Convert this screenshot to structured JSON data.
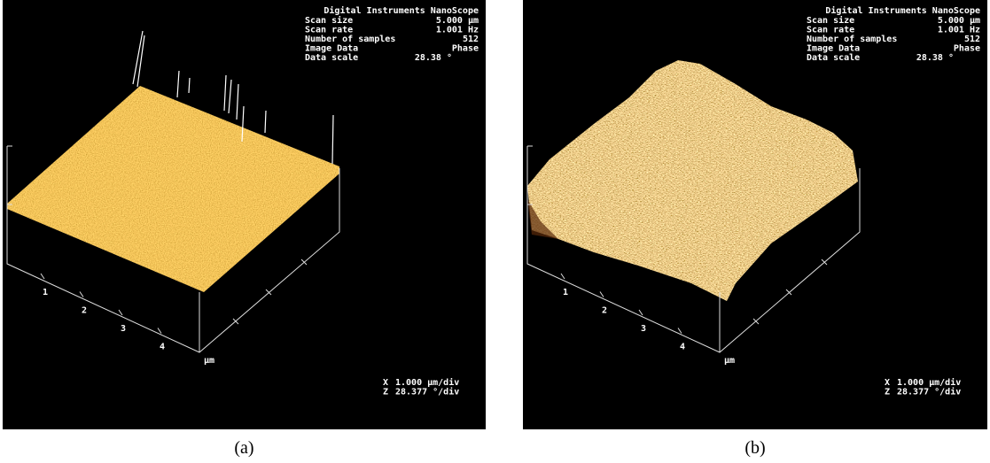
{
  "panels": [
    {
      "header": {
        "title": "Digital Instruments NanoScope",
        "rows": [
          {
            "label": "Scan size",
            "value": "5.000 µm"
          },
          {
            "label": "Scan rate",
            "value": "1.001 Hz"
          },
          {
            "label": "Number of samples",
            "value": "512"
          },
          {
            "label": "Image Data",
            "value": "Phase"
          },
          {
            "label": "Data scale",
            "value": "28.38 °"
          }
        ]
      },
      "axis_ticks": [
        "1",
        "2",
        "3",
        "4"
      ],
      "axis_unit": "µm",
      "footer": [
        {
          "axis": "X",
          "value": "1.000 µm/div"
        },
        {
          "axis": "Z",
          "value": "28.377 °/div"
        }
      ],
      "caption": "(a)"
    },
    {
      "header": {
        "title": "Digital Instruments NanoScope",
        "rows": [
          {
            "label": "Scan size",
            "value": "5.000 µm"
          },
          {
            "label": "Scan rate",
            "value": "1.001 Hz"
          },
          {
            "label": "Number of samples",
            "value": "512"
          },
          {
            "label": "Image Data",
            "value": "Phase"
          },
          {
            "label": "Data scale",
            "value": "28.38 °"
          }
        ]
      },
      "axis_ticks": [
        "1",
        "2",
        "3",
        "4"
      ],
      "axis_unit": "µm",
      "footer": [
        {
          "axis": "X",
          "value": "1.000 µm/div"
        },
        {
          "axis": "Z",
          "value": "28.377 °/div"
        }
      ],
      "caption": "(b)"
    }
  ]
}
